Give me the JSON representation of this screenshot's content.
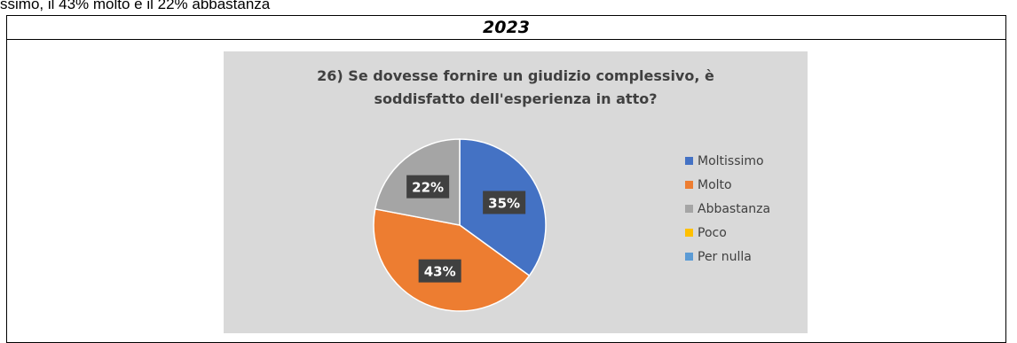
{
  "intro_text": "ssimo, il 43% molto e il 22% abbastanza",
  "year_header": "2023",
  "chart_data": {
    "type": "pie",
    "title": "26) Se dovesse fornire un giudizio complessivo, è soddisfatto dell'esperienza in atto?",
    "title_lines": [
      "26) Se dovesse fornire un giudizio complessivo, è",
      "soddisfatto dell'esperienza in atto?"
    ],
    "categories": [
      "Moltissimo",
      "Molto",
      "Abbastanza",
      "Poco",
      "Per nulla"
    ],
    "values": [
      35,
      43,
      22,
      0,
      0
    ],
    "data_labels": [
      "35%",
      "43%",
      "22%",
      "",
      ""
    ],
    "colors": [
      "#4472c4",
      "#ed7d31",
      "#a5a5a5",
      "#ffc000",
      "#5b9bd5"
    ],
    "legend_position": "right",
    "background": "#d9d9d9"
  }
}
